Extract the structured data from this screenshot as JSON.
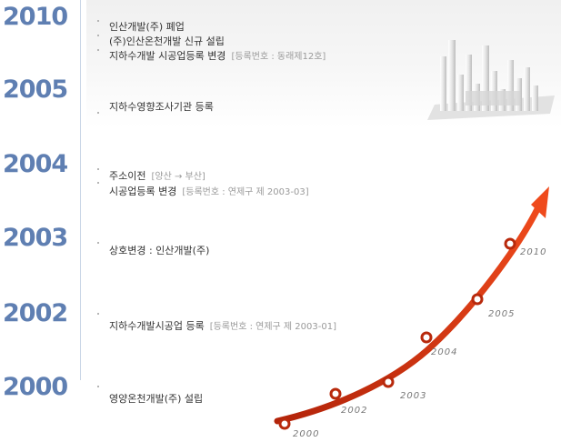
{
  "years": [
    "2010",
    "2005",
    "2004",
    "2003",
    "2002",
    "2000"
  ],
  "events": {
    "e2010_1": "인산개발(주) 폐업",
    "e2010_2": "(주)인산온천개발 신규 설립",
    "e2010_3": "지하수개발 시공업등록 변경",
    "e2010_3_note": "[등록번호 : 동래제12호]",
    "e2005": "지하수영향조사기관 등록",
    "e2004_1": "주소이전",
    "e2004_1_note": "[양산 → 부산]",
    "e2004_2": "시공업등록 변경",
    "e2004_2_note": "[등록번호 : 연제구 제 2003-03]",
    "e2003": "상호변경 : 인산개발(주)",
    "e2002": "지하수개발시공업 등록",
    "e2002_note": "[등록번호 : 연제구 제 2003-01]",
    "e2000": "영양온천개발(주) 설립"
  },
  "curve_labels": [
    "2000",
    "2002",
    "2003",
    "2004",
    "2005",
    "2010"
  ],
  "colors": {
    "year": "#5f7fb2",
    "arrow": "#d9360f",
    "node": "#b8290c"
  }
}
